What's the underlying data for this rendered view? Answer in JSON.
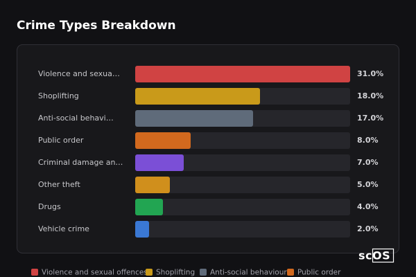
{
  "chart_data": {
    "type": "bar",
    "orientation": "horizontal",
    "title": "Crime Types Breakdown",
    "categories": [
      "Violence and sexua…",
      "Shoplifting",
      "Anti-social behavi…",
      "Public order",
      "Criminal damage an…",
      "Other theft",
      "Drugs",
      "Vehicle crime"
    ],
    "values": [
      31,
      18,
      17,
      8,
      7,
      5,
      4,
      2
    ],
    "value_labels": [
      "31.0%",
      "18.0%",
      "17.0%",
      "8.0%",
      "7.0%",
      "5.0%",
      "4.0%",
      "2.0%"
    ],
    "colors": [
      "#d04343",
      "#c99a1a",
      "#5f6b7a",
      "#d2691e",
      "#7b4fd6",
      "#d08f1c",
      "#22a552",
      "#3a78d4"
    ],
    "legend": [
      "Violence and sexual offences",
      "Shoplifting",
      "Anti-social behaviour",
      "Public order"
    ],
    "watermark": "scOS"
  }
}
